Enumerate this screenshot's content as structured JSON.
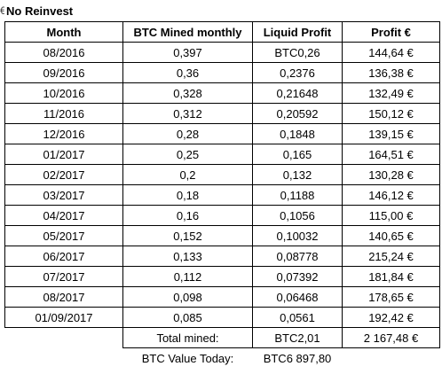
{
  "title": "No Reinvest",
  "edge_glyph": "€",
  "headers": {
    "month": "Month",
    "mined": "BTC Mined monthly",
    "liquid": "Liquid Profit",
    "profit": "Profit €"
  },
  "rows": [
    {
      "month": "08/2016",
      "mined": "0,397",
      "liquid": "BTC0,26",
      "profit": "144,64 €"
    },
    {
      "month": "09/2016",
      "mined": "0,36",
      "liquid": "0,2376",
      "profit": "136,38 €"
    },
    {
      "month": "10/2016",
      "mined": "0,328",
      "liquid": "0,21648",
      "profit": "132,49 €"
    },
    {
      "month": "11/2016",
      "mined": "0,312",
      "liquid": "0,20592",
      "profit": "150,12 €"
    },
    {
      "month": "12/2016",
      "mined": "0,28",
      "liquid": "0,1848",
      "profit": "139,15 €"
    },
    {
      "month": "01/2017",
      "mined": "0,25",
      "liquid": "0,165",
      "profit": "164,51 €"
    },
    {
      "month": "02/2017",
      "mined": "0,2",
      "liquid": "0,132",
      "profit": "130,28 €"
    },
    {
      "month": "03/2017",
      "mined": "0,18",
      "liquid": "0,1188",
      "profit": "146,12 €"
    },
    {
      "month": "04/2017",
      "mined": "0,16",
      "liquid": "0,1056",
      "profit": "115,00 €"
    },
    {
      "month": "05/2017",
      "mined": "0,152",
      "liquid": "0,10032",
      "profit": "140,65 €"
    },
    {
      "month": "06/2017",
      "mined": "0,133",
      "liquid": "0,08778",
      "profit": "215,24 €"
    },
    {
      "month": "07/2017",
      "mined": "0,112",
      "liquid": "0,07392",
      "profit": "181,84 €"
    },
    {
      "month": "08/2017",
      "mined": "0,098",
      "liquid": "0,06468",
      "profit": "178,65 €"
    },
    {
      "month": "01/09/2017",
      "mined": "0,085",
      "liquid": "0,0561",
      "profit": "192,42 €"
    }
  ],
  "totals": {
    "label": "Total mined:",
    "btc": "BTC2,01",
    "profit": "2 167,48 €"
  },
  "value_today": {
    "label": "BTC Value Today:",
    "value": "BTC6 897,80"
  }
}
